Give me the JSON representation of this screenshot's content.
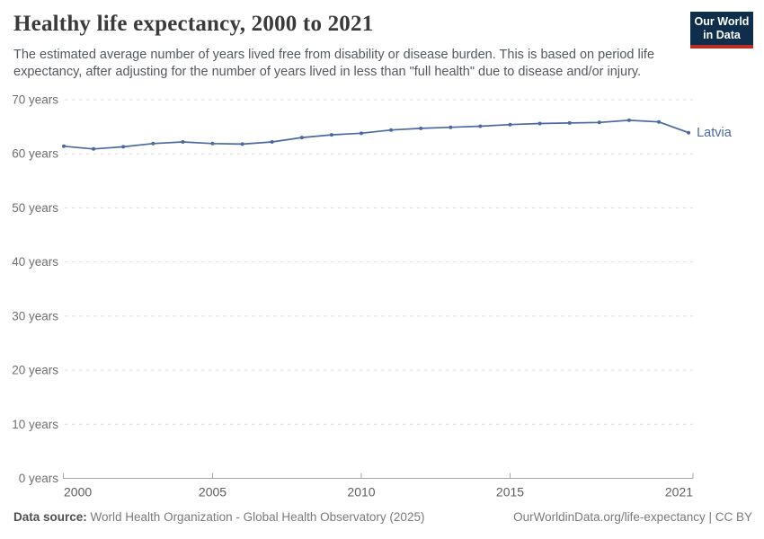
{
  "page": {
    "title": "Healthy life expectancy, 2000 to 2021",
    "subtitle_line1": "The estimated average number of years lived free from disability or disease burden. This is based on period life",
    "subtitle_line2": "expectancy, after adjusting for the number of years lived in less than \"full health\" due to disease and/or injury.",
    "logo": {
      "line1": "Our World",
      "line2": "in Data",
      "bg_color": "#0f2e4c",
      "stripe_color": "#bc2d27"
    },
    "footer": {
      "datasource_label": "Data source:",
      "datasource_text": " World Health Organization - Global Health Observatory (2025)",
      "link_text": "OurWorldinData.org/life-expectancy | CC BY"
    }
  },
  "chart_data": {
    "type": "line",
    "title": "Healthy life expectancy, 2000 to 2021",
    "xlabel": "",
    "ylabel": "",
    "x": [
      2000,
      2001,
      2002,
      2003,
      2004,
      2005,
      2006,
      2007,
      2008,
      2009,
      2010,
      2011,
      2012,
      2013,
      2014,
      2015,
      2016,
      2017,
      2018,
      2019,
      2020,
      2021
    ],
    "series": [
      {
        "name": "Latvia",
        "color": "#4b69a0",
        "values": [
          61.4,
          60.9,
          61.3,
          61.9,
          62.2,
          61.9,
          61.8,
          62.2,
          63.0,
          63.5,
          63.8,
          64.4,
          64.7,
          64.9,
          65.1,
          65.4,
          65.6,
          65.7,
          65.8,
          66.2,
          65.9,
          63.9
        ]
      }
    ],
    "ylim": [
      0,
      70
    ],
    "yticks": [
      0,
      10,
      20,
      30,
      40,
      50,
      60,
      70
    ],
    "ytick_suffix": " years",
    "xticks": [
      2000,
      2005,
      2010,
      2015,
      2021
    ],
    "grid": "horizontal-dashed",
    "legend_position": "end-of-line-label"
  }
}
